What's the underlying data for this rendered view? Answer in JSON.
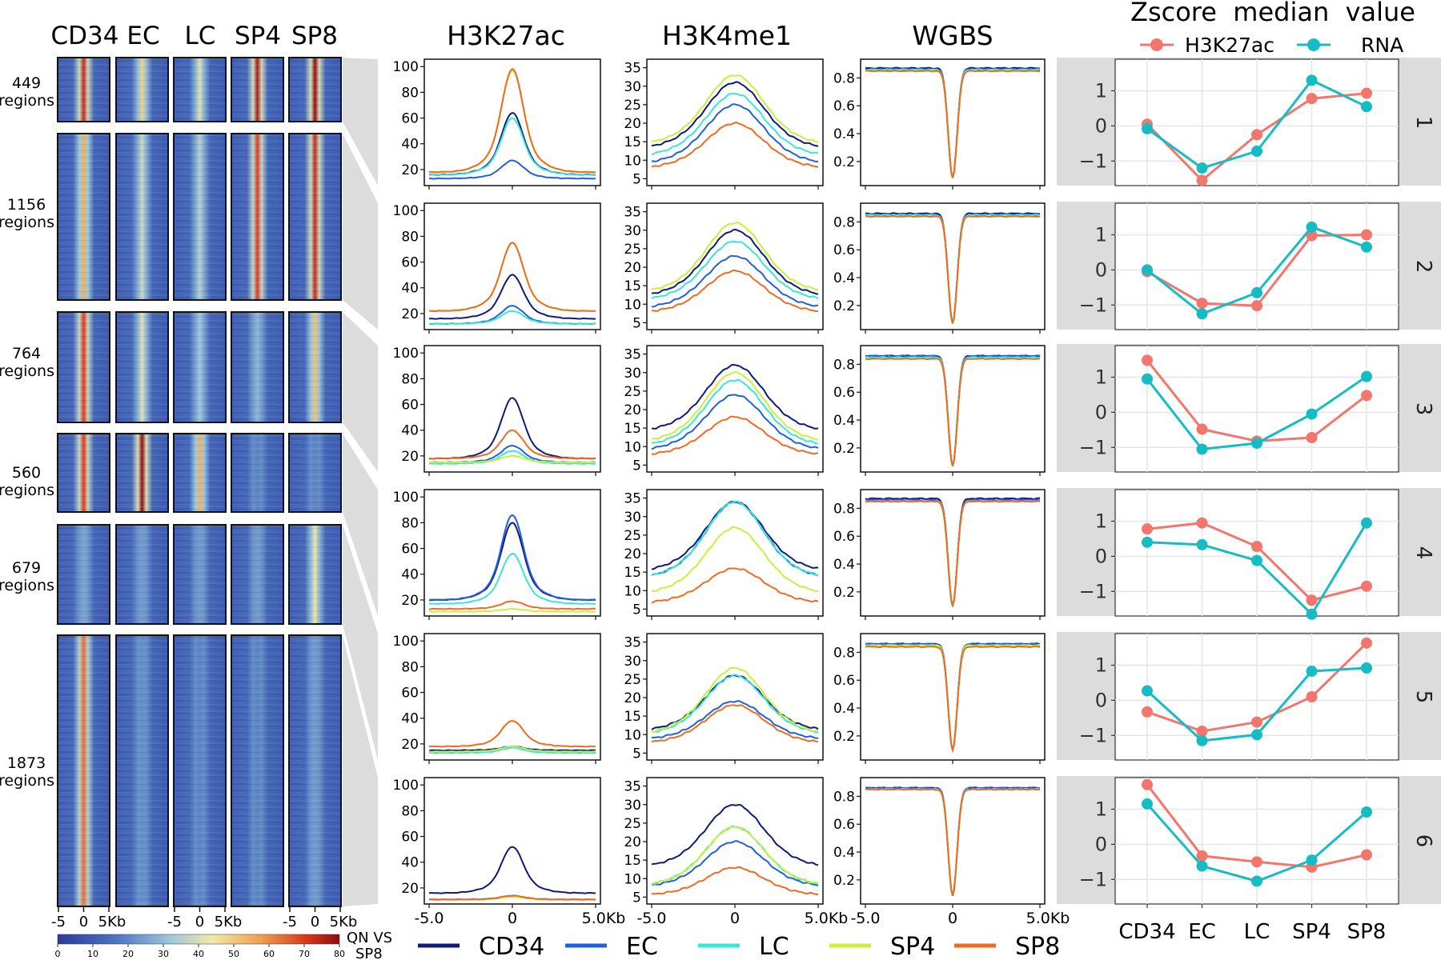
{
  "colors": {
    "CD34": "#0d1b7a",
    "EC": "#1f5fe0",
    "LC": "#39e6d8",
    "SP4": "#c8f03c",
    "SP8": "#f06a22",
    "zscore_h3k27ac": "#f2766d",
    "zscore_rna": "#16bcc4",
    "band": "#dcdcdc"
  },
  "heatmap": {
    "column_labels": [
      "CD34",
      "EC",
      "LC",
      "SP4",
      "SP8"
    ],
    "row_groups": [
      {
        "count": "449",
        "label": "regions"
      },
      {
        "count": "1156",
        "label": "regions"
      },
      {
        "count": "764",
        "label": "regions"
      },
      {
        "count": "560",
        "label": "regions"
      },
      {
        "count": "679",
        "label": "regions"
      },
      {
        "count": "1873",
        "label": "regions"
      }
    ],
    "x_ticks": [
      "-5",
      "0",
      "5Kb"
    ],
    "colorbar": {
      "ticks": [
        "0",
        "10",
        "20",
        "30",
        "40",
        "50",
        "60",
        "70",
        "80"
      ],
      "label_line1": "QN VS",
      "label_line2": "SP8",
      "range": [
        0,
        80
      ]
    },
    "intensity": [
      [
        0.9,
        0.5,
        0.4,
        0.95,
        1.0
      ],
      [
        0.6,
        0.35,
        0.3,
        0.85,
        0.9
      ],
      [
        0.85,
        0.4,
        0.25,
        0.2,
        0.55
      ],
      [
        0.85,
        1.0,
        0.6,
        0.05,
        0.05
      ],
      [
        0.15,
        0.12,
        0.12,
        0.12,
        0.45
      ],
      [
        0.75,
        0.08,
        0.05,
        0.05,
        0.12
      ]
    ]
  },
  "legend": {
    "samples": [
      "CD34",
      "EC",
      "LC",
      "SP4",
      "SP8"
    ]
  },
  "chart_data": [
    {
      "type": "line",
      "title": "H3K27ac",
      "xlabel": "",
      "ylabel": "",
      "x_ticks": [
        "-5.0",
        "0",
        "5.0Kb"
      ],
      "y_ticks": [
        20,
        40,
        60,
        80,
        100
      ],
      "ylim": [
        10,
        102
      ],
      "note": "profile values: [background, peak] per cluster for CD34, EC, LC, SP4, SP8",
      "clusters": [
        {
          "CD34": [
            16,
            64
          ],
          "EC": [
            13,
            27
          ],
          "LC": [
            16,
            60
          ],
          "SP4": [
            18,
            97
          ],
          "SP8": [
            18,
            98
          ]
        },
        {
          "CD34": [
            16,
            50
          ],
          "EC": [
            12,
            26
          ],
          "LC": [
            12,
            22
          ],
          "SP4": [
            22,
            75
          ],
          "SP8": [
            22,
            75
          ]
        },
        {
          "CD34": [
            18,
            65
          ],
          "EC": [
            15,
            28
          ],
          "LC": [
            14,
            24
          ],
          "SP4": [
            15,
            20
          ],
          "SP8": [
            18,
            40
          ]
        },
        {
          "CD34": [
            20,
            80
          ],
          "EC": [
            20,
            86
          ],
          "LC": [
            17,
            56
          ],
          "SP4": [
            11,
            13
          ],
          "SP8": [
            13,
            19
          ]
        },
        {
          "CD34": [
            15,
            18
          ],
          "EC": [
            14,
            18
          ],
          "LC": [
            13,
            17
          ],
          "SP4": [
            14,
            18
          ],
          "SP8": [
            18,
            38
          ]
        },
        {
          "CD34": [
            16,
            52
          ],
          "EC": [
            11,
            14
          ],
          "LC": [
            11,
            14
          ],
          "SP4": [
            11,
            13
          ],
          "SP8": [
            11,
            14
          ]
        }
      ]
    },
    {
      "type": "line",
      "title": "H3K4me1",
      "xlabel": "",
      "ylabel": "",
      "x_ticks": [
        "-5.0",
        "0",
        "5.0Kb"
      ],
      "y_ticks": [
        5,
        10,
        15,
        20,
        25,
        30,
        35
      ],
      "ylim": [
        4,
        36
      ],
      "note": "profile values: [background, peak] per cluster for CD34, EC, LC, SP4, SP8",
      "clusters": [
        {
          "CD34": [
            12,
            31
          ],
          "EC": [
            8,
            25
          ],
          "LC": [
            10,
            28
          ],
          "SP4": [
            13,
            33
          ],
          "SP8": [
            7,
            20
          ]
        },
        {
          "CD34": [
            11,
            30
          ],
          "EC": [
            8,
            23
          ],
          "LC": [
            10,
            27
          ],
          "SP4": [
            12,
            32
          ],
          "SP8": [
            7,
            19
          ]
        },
        {
          "CD34": [
            13,
            32
          ],
          "EC": [
            8,
            24
          ],
          "LC": [
            9,
            28
          ],
          "SP4": [
            10,
            30
          ],
          "SP8": [
            7,
            18
          ]
        },
        {
          "CD34": [
            14,
            34
          ],
          "EC": [
            12,
            34
          ],
          "LC": [
            12,
            34
          ],
          "SP4": [
            8,
            27
          ],
          "SP8": [
            6,
            16
          ]
        },
        {
          "CD34": [
            10,
            26
          ],
          "EC": [
            8,
            19
          ],
          "LC": [
            9,
            26
          ],
          "SP4": [
            9,
            28
          ],
          "SP8": [
            7,
            18
          ]
        },
        {
          "CD34": [
            12,
            30
          ],
          "EC": [
            7,
            20
          ],
          "LC": [
            7,
            24
          ],
          "SP4": [
            7,
            24
          ],
          "SP8": [
            5,
            13
          ]
        }
      ]
    },
    {
      "type": "line",
      "title": "WGBS",
      "xlabel": "",
      "ylabel": "",
      "x_ticks": [
        "-5.0",
        "0",
        "5.0Kb"
      ],
      "y_ticks": [
        0.2,
        0.4,
        0.6,
        0.8
      ],
      "ylim": [
        0.05,
        0.9
      ],
      "note": "profile values: [background, minimum] per cluster for CD34, EC, LC, SP4, SP8",
      "clusters": [
        {
          "CD34": [
            0.87,
            0.08
          ],
          "EC": [
            0.86,
            0.08
          ],
          "LC": [
            0.86,
            0.08
          ],
          "SP4": [
            0.85,
            0.08
          ],
          "SP8": [
            0.85,
            0.08
          ]
        },
        {
          "CD34": [
            0.86,
            0.07
          ],
          "EC": [
            0.85,
            0.07
          ],
          "LC": [
            0.85,
            0.07
          ],
          "SP4": [
            0.84,
            0.07
          ],
          "SP8": [
            0.84,
            0.07
          ]
        },
        {
          "CD34": [
            0.86,
            0.07
          ],
          "EC": [
            0.86,
            0.07
          ],
          "LC": [
            0.85,
            0.07
          ],
          "SP4": [
            0.84,
            0.07
          ],
          "SP8": [
            0.84,
            0.07
          ]
        },
        {
          "CD34": [
            0.87,
            0.1
          ],
          "EC": [
            0.86,
            0.1
          ],
          "LC": [
            0.85,
            0.09
          ],
          "SP4": [
            0.85,
            0.1
          ],
          "SP8": [
            0.85,
            0.1
          ]
        },
        {
          "CD34": [
            0.86,
            0.1
          ],
          "EC": [
            0.86,
            0.1
          ],
          "LC": [
            0.85,
            0.1
          ],
          "SP4": [
            0.85,
            0.1
          ],
          "SP8": [
            0.84,
            0.1
          ]
        },
        {
          "CD34": [
            0.86,
            0.09
          ],
          "EC": [
            0.86,
            0.09
          ],
          "LC": [
            0.85,
            0.09
          ],
          "SP4": [
            0.85,
            0.09
          ],
          "SP8": [
            0.85,
            0.09
          ]
        }
      ]
    },
    {
      "type": "line",
      "title": "Zscore  median  value",
      "xlabel": "",
      "ylabel": "",
      "categories": [
        "CD34",
        "EC",
        "LC",
        "SP4",
        "SP8"
      ],
      "y_ticks": [
        1,
        0,
        -1
      ],
      "ylim": [
        -1.7,
        1.9
      ],
      "legend": [
        "H3K27ac",
        "RNA"
      ],
      "panel_labels": [
        "1",
        "2",
        "3",
        "4",
        "5",
        "6"
      ],
      "clusters": [
        {
          "H3K27ac": [
            0.05,
            -1.55,
            -0.25,
            0.78,
            0.93
          ],
          "RNA": [
            -0.08,
            -1.2,
            -0.72,
            1.3,
            0.55
          ]
        },
        {
          "H3K27ac": [
            -0.05,
            -0.95,
            -1.02,
            0.98,
            1.0
          ],
          "RNA": [
            0.0,
            -1.25,
            -0.65,
            1.22,
            0.65
          ]
        },
        {
          "H3K27ac": [
            1.48,
            -0.48,
            -0.82,
            -0.72,
            0.48
          ],
          "RNA": [
            0.95,
            -1.05,
            -0.88,
            -0.05,
            1.02
          ]
        },
        {
          "H3K27ac": [
            0.78,
            0.95,
            0.28,
            -1.25,
            -0.85
          ],
          "RNA": [
            0.4,
            0.33,
            -0.12,
            -1.65,
            0.95
          ]
        },
        {
          "H3K27ac": [
            -0.33,
            -0.88,
            -0.62,
            0.1,
            1.63
          ],
          "RNA": [
            0.27,
            -1.15,
            -0.98,
            0.83,
            0.92
          ]
        },
        {
          "H3K27ac": [
            1.7,
            -0.33,
            -0.5,
            -0.65,
            -0.3
          ],
          "RNA": [
            1.15,
            -0.62,
            -1.05,
            -0.45,
            0.92
          ]
        }
      ]
    }
  ]
}
